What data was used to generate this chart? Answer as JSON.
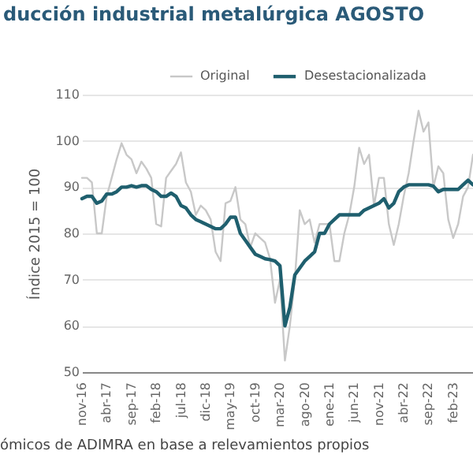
{
  "chart_data": {
    "type": "line",
    "title": "ducción industrial metalúrgica AGOSTO",
    "ylabel": "Índice 2015 = 100",
    "categories": [
      "nov-16",
      null,
      null,
      null,
      null,
      "abr-17",
      null,
      null,
      null,
      null,
      "sep-17",
      null,
      null,
      null,
      null,
      "feb-18",
      null,
      null,
      null,
      null,
      "jul-18",
      null,
      null,
      null,
      null,
      "dic-18",
      null,
      null,
      null,
      null,
      "may-19",
      null,
      null,
      null,
      null,
      "oct-19",
      null,
      null,
      null,
      null,
      "mar-20",
      null,
      null,
      null,
      null,
      "ago-20",
      null,
      null,
      null,
      null,
      "ene-21",
      null,
      null,
      null,
      null,
      "jun-21",
      null,
      null,
      null,
      null,
      "nov-21",
      null,
      null,
      null,
      null,
      "abr-22",
      null,
      null,
      null,
      null,
      "sep-22",
      null,
      null,
      null,
      null,
      "feb-23",
      null,
      null,
      null,
      null
    ],
    "series": [
      {
        "name": "Original",
        "color": "#c8c8c8",
        "values": [
          92,
          92,
          91,
          80,
          80,
          88,
          92,
          96,
          99.5,
          97,
          96,
          93,
          95.5,
          94,
          92,
          82,
          81.5,
          92,
          93.5,
          95,
          97.5,
          91,
          89,
          84,
          86,
          85,
          83,
          76,
          74,
          86.5,
          87,
          90,
          83,
          82,
          77,
          80,
          79,
          78,
          74.5,
          65,
          70,
          52.5,
          60,
          70,
          85,
          82,
          83,
          78,
          82,
          82,
          82,
          74,
          74,
          80,
          84,
          90,
          98.5,
          95,
          97,
          86,
          92,
          92,
          82,
          77.5,
          82,
          88,
          93,
          100,
          106.5,
          102,
          104,
          90,
          94.5,
          93,
          83,
          79,
          82,
          88,
          90,
          97
        ]
      },
      {
        "name": "Desestacionalizada",
        "color": "#1f5f6e",
        "values": [
          87.5,
          88,
          88,
          86.5,
          87,
          88.5,
          88.5,
          89,
          90,
          90,
          90.3,
          90,
          90.3,
          90.3,
          89.5,
          89,
          88,
          88,
          88.7,
          88,
          86,
          85.5,
          84,
          83,
          82.5,
          82,
          81.5,
          81,
          81,
          82,
          83.5,
          83.5,
          80,
          78.5,
          77,
          75.5,
          75,
          74.5,
          74.3,
          74,
          73,
          60,
          64,
          71,
          72.5,
          74,
          75,
          76,
          80,
          80,
          82,
          83,
          84,
          84,
          84,
          84,
          84,
          85,
          85.5,
          86,
          86.5,
          87.5,
          85.5,
          86.5,
          89,
          90,
          90.5,
          90.5,
          90.5,
          90.5,
          90.5,
          90.2,
          89,
          89.5,
          89.5,
          89.5,
          89.5,
          90.5,
          91.5,
          90.5
        ]
      }
    ],
    "ylim": [
      50,
      110
    ],
    "yticks": [
      50,
      60,
      70,
      80,
      90,
      100,
      110
    ],
    "grid": "y",
    "legend": "top right",
    "marker": "none",
    "line_style": "solid",
    "annotations": [
      "ómicos de ADIMRA en base a relevamientos propios"
    ]
  }
}
